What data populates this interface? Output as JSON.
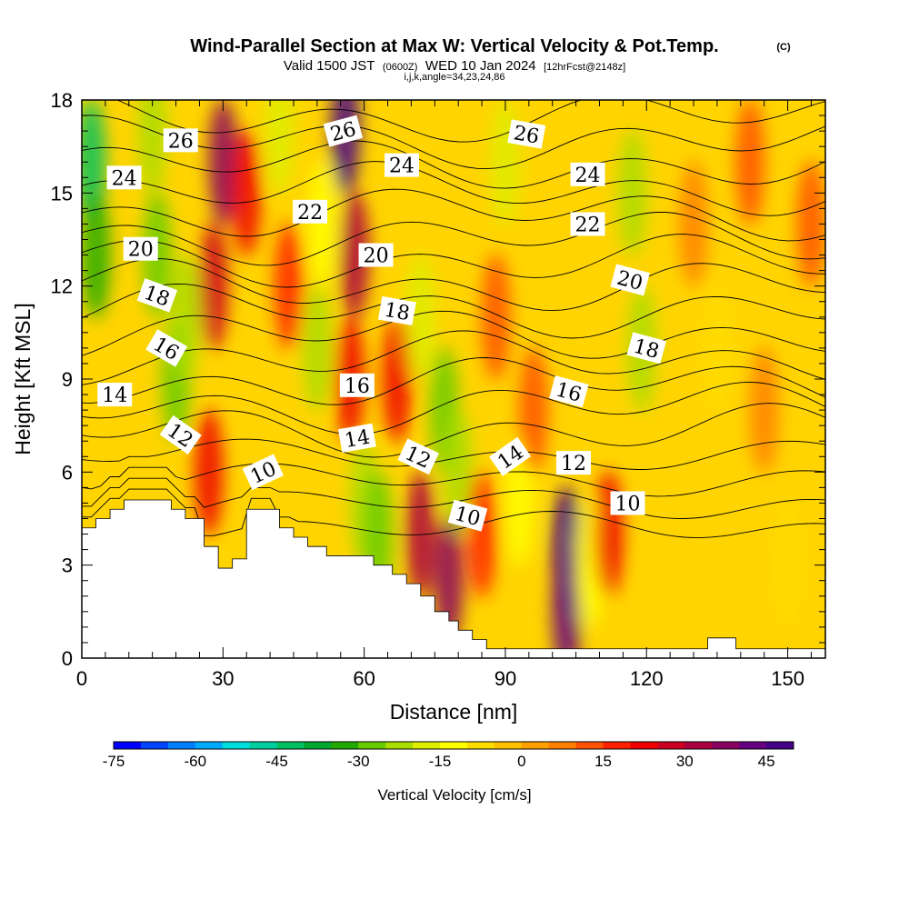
{
  "title": {
    "main": "Wind-Parallel Section at Max W: Vertical Velocity & Pot.Temp.",
    "copyright": "(C)",
    "valid_prefix": "Valid 1500 JST",
    "valid_utc": "(0600Z)",
    "valid_date": "WED 10 Jan 2024",
    "forecast": "[12hrFcst@2148z]",
    "indices": "i,j,k,angle=34,23,24,86"
  },
  "chart_data": {
    "type": "heatmap",
    "xlabel": "Distance [nm]",
    "ylabel": "Height [Kft MSL]",
    "xlim": [
      0,
      158
    ],
    "ylim": [
      0,
      18
    ],
    "x_ticks": [
      0,
      30,
      60,
      90,
      120,
      150
    ],
    "y_ticks": [
      0,
      3,
      6,
      9,
      12,
      15,
      18
    ],
    "colorbar": {
      "title": "Vertical Velocity [cm/s]",
      "min": -75,
      "max": 50,
      "step": 5,
      "tick_values": [
        -75,
        -60,
        -45,
        -30,
        -15,
        0,
        15,
        30,
        45
      ],
      "colors": [
        "#0000ff",
        "#0044ff",
        "#0080ff",
        "#00aaff",
        "#00dddd",
        "#00d0a0",
        "#00c060",
        "#00a830",
        "#22aa00",
        "#66cc00",
        "#aadd00",
        "#ddee00",
        "#ffff00",
        "#ffdd00",
        "#ffc000",
        "#ffa000",
        "#ff8000",
        "#ff5000",
        "#ff2000",
        "#ee0000",
        "#cc0020",
        "#aa0040",
        "#880060",
        "#660080",
        "#440088"
      ]
    },
    "terrain_profile": [
      {
        "x": 0,
        "h": 4.2
      },
      {
        "x": 3,
        "h": 4.2
      },
      {
        "x": 3,
        "h": 4.5
      },
      {
        "x": 6,
        "h": 4.5
      },
      {
        "x": 6,
        "h": 4.8
      },
      {
        "x": 9,
        "h": 4.8
      },
      {
        "x": 9,
        "h": 5.1
      },
      {
        "x": 12,
        "h": 5.1
      },
      {
        "x": 12,
        "h": 5.1
      },
      {
        "x": 19,
        "h": 5.1
      },
      {
        "x": 19,
        "h": 4.8
      },
      {
        "x": 22,
        "h": 4.8
      },
      {
        "x": 22,
        "h": 4.5
      },
      {
        "x": 26,
        "h": 4.5
      },
      {
        "x": 26,
        "h": 3.6
      },
      {
        "x": 29,
        "h": 3.6
      },
      {
        "x": 29,
        "h": 2.9
      },
      {
        "x": 32,
        "h": 2.9
      },
      {
        "x": 32,
        "h": 3.2
      },
      {
        "x": 35,
        "h": 3.2
      },
      {
        "x": 35,
        "h": 4.8
      },
      {
        "x": 42,
        "h": 4.8
      },
      {
        "x": 42,
        "h": 4.2
      },
      {
        "x": 45,
        "h": 4.2
      },
      {
        "x": 45,
        "h": 3.9
      },
      {
        "x": 48,
        "h": 3.9
      },
      {
        "x": 48,
        "h": 3.6
      },
      {
        "x": 52,
        "h": 3.6
      },
      {
        "x": 52,
        "h": 3.3
      },
      {
        "x": 56,
        "h": 3.3
      },
      {
        "x": 56,
        "h": 3.3
      },
      {
        "x": 62,
        "h": 3.3
      },
      {
        "x": 62,
        "h": 3.0
      },
      {
        "x": 66,
        "h": 3.0
      },
      {
        "x": 66,
        "h": 2.7
      },
      {
        "x": 69,
        "h": 2.7
      },
      {
        "x": 69,
        "h": 2.4
      },
      {
        "x": 72,
        "h": 2.4
      },
      {
        "x": 72,
        "h": 2.0
      },
      {
        "x": 75,
        "h": 2.0
      },
      {
        "x": 75,
        "h": 1.5
      },
      {
        "x": 78,
        "h": 1.5
      },
      {
        "x": 78,
        "h": 1.2
      },
      {
        "x": 80,
        "h": 1.2
      },
      {
        "x": 80,
        "h": 0.9
      },
      {
        "x": 83,
        "h": 0.9
      },
      {
        "x": 83,
        "h": 0.6
      },
      {
        "x": 86,
        "h": 0.6
      },
      {
        "x": 86,
        "h": 0.3
      },
      {
        "x": 89,
        "h": 0.3
      },
      {
        "x": 89,
        "h": 0.3
      },
      {
        "x": 133,
        "h": 0.3
      },
      {
        "x": 133,
        "h": 0.65
      },
      {
        "x": 139,
        "h": 0.65
      },
      {
        "x": 139,
        "h": 0.3
      },
      {
        "x": 158,
        "h": 0.3
      }
    ],
    "velocity_cells": [
      {
        "x": 2,
        "h": 16,
        "w": -45
      },
      {
        "x": 3,
        "h": 13,
        "w": -35
      },
      {
        "x": 15,
        "h": 17,
        "w": -25
      },
      {
        "x": 16,
        "h": 13,
        "w": -30
      },
      {
        "x": 20,
        "h": 9,
        "w": -30
      },
      {
        "x": 22,
        "h": 11,
        "w": -25
      },
      {
        "x": 30,
        "h": 16,
        "w": 35
      },
      {
        "x": 28,
        "h": 12,
        "w": 25
      },
      {
        "x": 27,
        "h": 6,
        "w": 20
      },
      {
        "x": 35,
        "h": 15,
        "w": 20
      },
      {
        "x": 42,
        "h": 17,
        "w": -20
      },
      {
        "x": 44,
        "h": 12,
        "w": 15
      },
      {
        "x": 50,
        "h": 10,
        "w": -25
      },
      {
        "x": 51,
        "h": 14,
        "w": -15
      },
      {
        "x": 56,
        "h": 17,
        "w": 45
      },
      {
        "x": 58,
        "h": 13,
        "w": 30
      },
      {
        "x": 57,
        "h": 9,
        "w": 20
      },
      {
        "x": 60,
        "h": 5,
        "w": -25
      },
      {
        "x": 63,
        "h": 4,
        "w": -30
      },
      {
        "x": 67,
        "h": 9,
        "w": 20
      },
      {
        "x": 72,
        "h": 11,
        "w": -20
      },
      {
        "x": 77,
        "h": 8,
        "w": -30
      },
      {
        "x": 80,
        "h": 6,
        "w": -25
      },
      {
        "x": 72,
        "h": 4,
        "w": 30
      },
      {
        "x": 78,
        "h": 2.5,
        "w": 35
      },
      {
        "x": 85,
        "h": 4,
        "w": 15
      },
      {
        "x": 88,
        "h": 11,
        "w": 10
      },
      {
        "x": 90,
        "h": 16,
        "w": -20
      },
      {
        "x": 93,
        "h": 5,
        "w": -15
      },
      {
        "x": 96,
        "h": 8,
        "w": 10
      },
      {
        "x": 103,
        "h": 3.5,
        "w": 50
      },
      {
        "x": 103,
        "h": 1.5,
        "w": 40
      },
      {
        "x": 108,
        "h": 3,
        "w": -15
      },
      {
        "x": 112,
        "h": 4,
        "w": 20
      },
      {
        "x": 117,
        "h": 15,
        "w": -25
      },
      {
        "x": 119,
        "h": 10,
        "w": -25
      },
      {
        "x": 130,
        "h": 14,
        "w": 8
      },
      {
        "x": 135,
        "h": 10,
        "w": -10
      },
      {
        "x": 142,
        "h": 16,
        "w": 10
      },
      {
        "x": 150,
        "h": 3,
        "w": -8
      },
      {
        "x": 145,
        "h": 8,
        "w": 5
      },
      {
        "x": 155,
        "h": 14,
        "w": 10
      }
    ],
    "isentrope_levels": [
      10,
      11,
      12,
      13,
      14,
      15,
      16,
      17,
      18,
      19,
      20,
      21,
      22,
      23,
      24,
      25,
      26,
      27
    ],
    "isentrope_labels": [
      {
        "text": "26",
        "x": 21,
        "h": 16.7,
        "angle": 0
      },
      {
        "text": "24",
        "x": 9,
        "h": 15.5,
        "angle": 0
      },
      {
        "text": "20",
        "x": 12.5,
        "h": 13.2,
        "angle": 0
      },
      {
        "text": "18",
        "x": 16,
        "h": 11.7,
        "angle": 20
      },
      {
        "text": "16",
        "x": 18,
        "h": 10.0,
        "angle": 30
      },
      {
        "text": "14",
        "x": 7,
        "h": 8.5,
        "angle": 0
      },
      {
        "text": "12",
        "x": 21,
        "h": 7.2,
        "angle": 35
      },
      {
        "text": "10",
        "x": 38.5,
        "h": 6.0,
        "angle": -25
      },
      {
        "text": "26",
        "x": 55.5,
        "h": 17.0,
        "angle": -15
      },
      {
        "text": "24",
        "x": 68,
        "h": 15.9,
        "angle": 0
      },
      {
        "text": "22",
        "x": 48.5,
        "h": 14.4,
        "angle": 0
      },
      {
        "text": "20",
        "x": 62.5,
        "h": 13.0,
        "angle": 0
      },
      {
        "text": "18",
        "x": 67,
        "h": 11.2,
        "angle": 10
      },
      {
        "text": "16",
        "x": 58.5,
        "h": 8.8,
        "angle": 0
      },
      {
        "text": "14",
        "x": 58.5,
        "h": 7.1,
        "angle": -10
      },
      {
        "text": "12",
        "x": 71.5,
        "h": 6.5,
        "angle": 25
      },
      {
        "text": "10",
        "x": 82,
        "h": 4.6,
        "angle": 15
      },
      {
        "text": "26",
        "x": 94.5,
        "h": 16.9,
        "angle": 10
      },
      {
        "text": "24",
        "x": 107.5,
        "h": 15.6,
        "angle": 0
      },
      {
        "text": "22",
        "x": 107.5,
        "h": 14.0,
        "angle": 0
      },
      {
        "text": "20",
        "x": 116.5,
        "h": 12.2,
        "angle": 15
      },
      {
        "text": "18",
        "x": 120,
        "h": 10.0,
        "angle": 15
      },
      {
        "text": "16",
        "x": 103.5,
        "h": 8.6,
        "angle": 15
      },
      {
        "text": "14",
        "x": 91,
        "h": 6.5,
        "angle": -35
      },
      {
        "text": "12",
        "x": 104.5,
        "h": 6.3,
        "angle": 0
      },
      {
        "text": "10",
        "x": 116,
        "h": 5.0,
        "angle": 0
      }
    ]
  }
}
